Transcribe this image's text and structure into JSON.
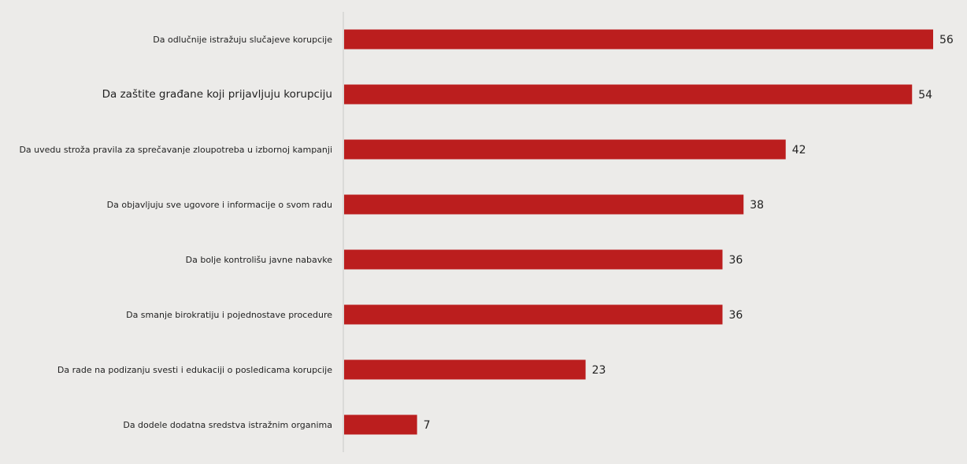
{
  "chart_data": {
    "type": "bar",
    "orientation": "horizontal",
    "title": "",
    "xlabel": "",
    "ylabel": "",
    "xlim": [
      0,
      56
    ],
    "grid": false,
    "categories": [
      "Da odlučnije istražuju slučajeve korupcije",
      "Da zaštite građane koji prijavljuju korupciju",
      "Da uvedu stroža pravila za sprečavanje zloupotreba u izbornoj kampanji",
      "Da objavljuju sve ugovore i informacije o svom radu",
      "Da bolje kontrolišu javne nabavke",
      "Da smanje birokratiju i pojednostave procedure",
      "Da rade na podizanju svesti i edukaciji o posledicama korupcije",
      "Da dodele dodatna sredstva istražnim organima"
    ],
    "values": [
      56,
      54,
      42,
      38,
      36,
      36,
      23,
      7
    ],
    "colors": {
      "bar": "#bb1e1e",
      "axis": "#c8c8c8",
      "text": "#222222"
    }
  }
}
